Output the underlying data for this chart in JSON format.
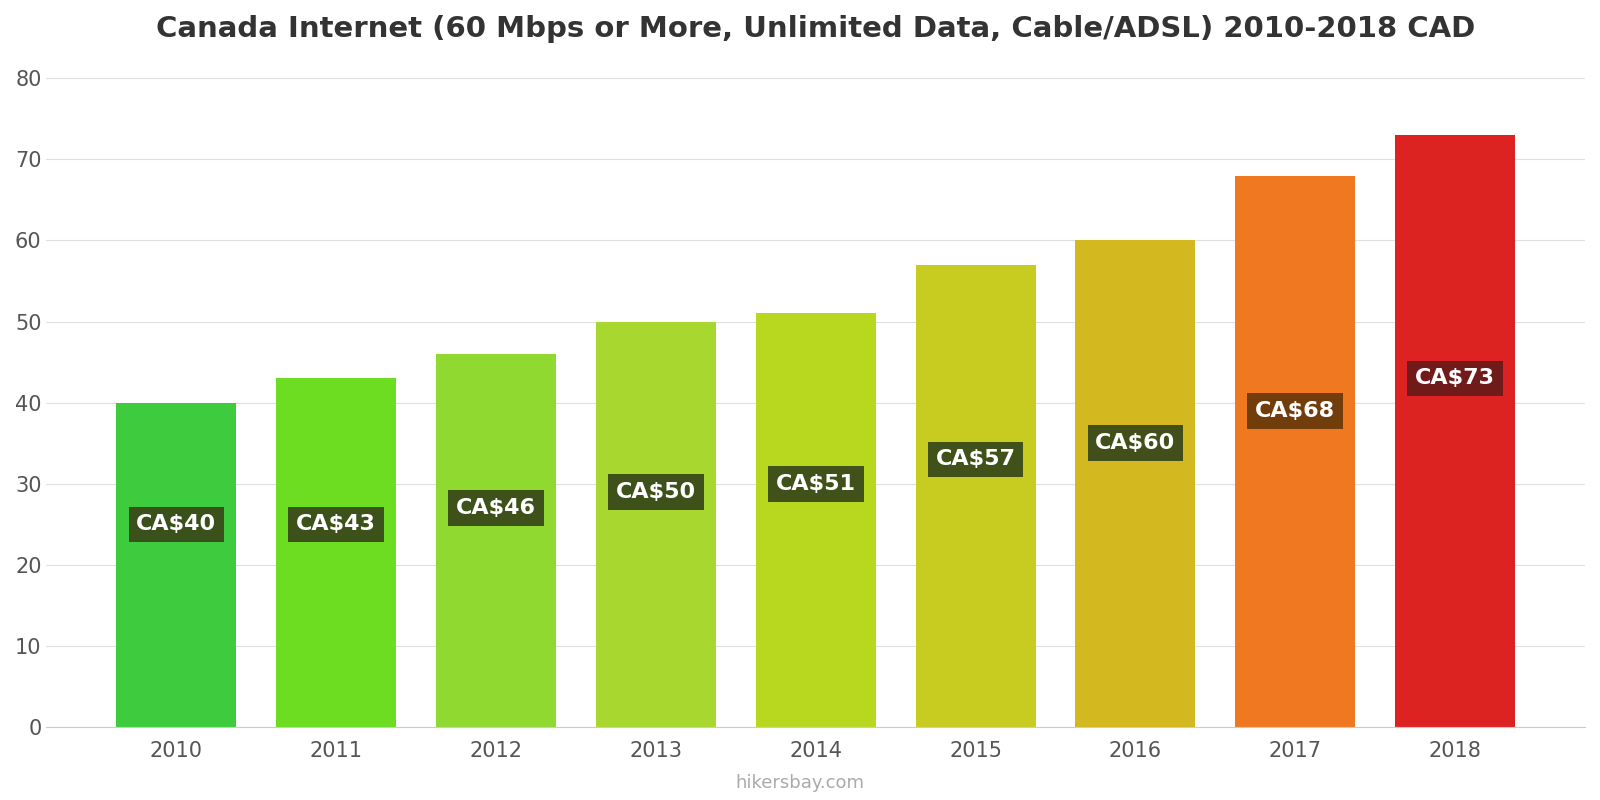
{
  "title": "Canada Internet (60 Mbps or More, Unlimited Data, Cable/ADSL) 2010-2018 CAD",
  "years": [
    2010,
    2011,
    2012,
    2013,
    2014,
    2015,
    2016,
    2017,
    2018
  ],
  "values": [
    40,
    43,
    46,
    50,
    51,
    57,
    60,
    68,
    73
  ],
  "bar_colors": [
    "#3ecc3e",
    "#6ddd22",
    "#90d930",
    "#a8d830",
    "#b8d820",
    "#c8cc20",
    "#d4b820",
    "#f07820",
    "#dd2222"
  ],
  "label_bg_colors": [
    "#3a4a1a",
    "#3a4a1a",
    "#3a4a1a",
    "#3a4a1a",
    "#3a4a1a",
    "#3a4a1a",
    "#3a4a1a",
    "#6a3a0a",
    "#6a1a1a"
  ],
  "labels": [
    "CA$40",
    "CA$43",
    "CA$46",
    "CA$50",
    "CA$51",
    "CA$57",
    "CA$60",
    "CA$68",
    "CA$73"
  ],
  "label_y_positions": [
    25,
    25,
    27,
    29,
    30,
    33,
    35,
    39,
    43
  ],
  "ylabel_values": [
    0,
    10,
    20,
    30,
    40,
    50,
    60,
    70,
    80
  ],
  "ylim": [
    0,
    82
  ],
  "watermark": "hikersbay.com",
  "background_color": "#ffffff",
  "title_fontsize": 21,
  "tick_fontsize": 15,
  "label_fontsize": 16
}
